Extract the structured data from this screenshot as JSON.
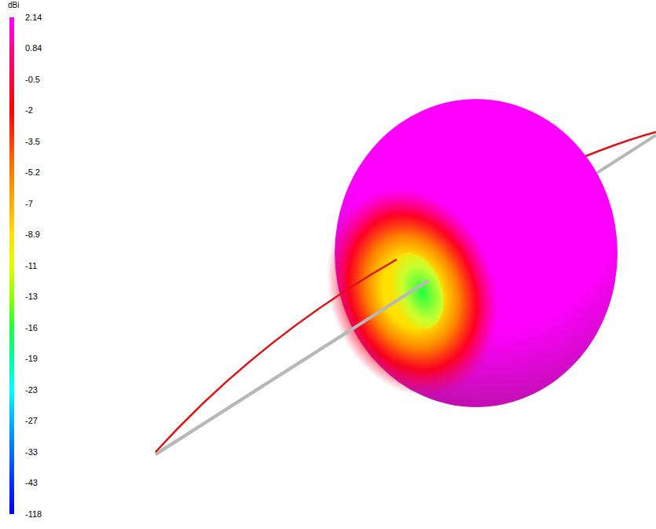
{
  "chart_data": {
    "type": "radiation_pattern_3d",
    "colorbar": {
      "title": "dBi",
      "range": [
        -118,
        2.14
      ],
      "ticks": [
        2.14,
        0.84,
        -0.5,
        -2,
        -3.5,
        -5.2,
        -7,
        -8.9,
        -11,
        -13,
        -16,
        -19,
        -23,
        -27,
        -33,
        -43,
        -118
      ],
      "colors": [
        "#ff00ff",
        "#ff0090",
        "#ff0040",
        "#ff0000",
        "#ff4000",
        "#ff8000",
        "#ffb000",
        "#ffe000",
        "#e0ff00",
        "#90ff00",
        "#20ff40",
        "#00ffa0",
        "#00ffff",
        "#00b0ff",
        "#0070ff",
        "#0030ff",
        "#0000ff"
      ]
    }
  }
}
